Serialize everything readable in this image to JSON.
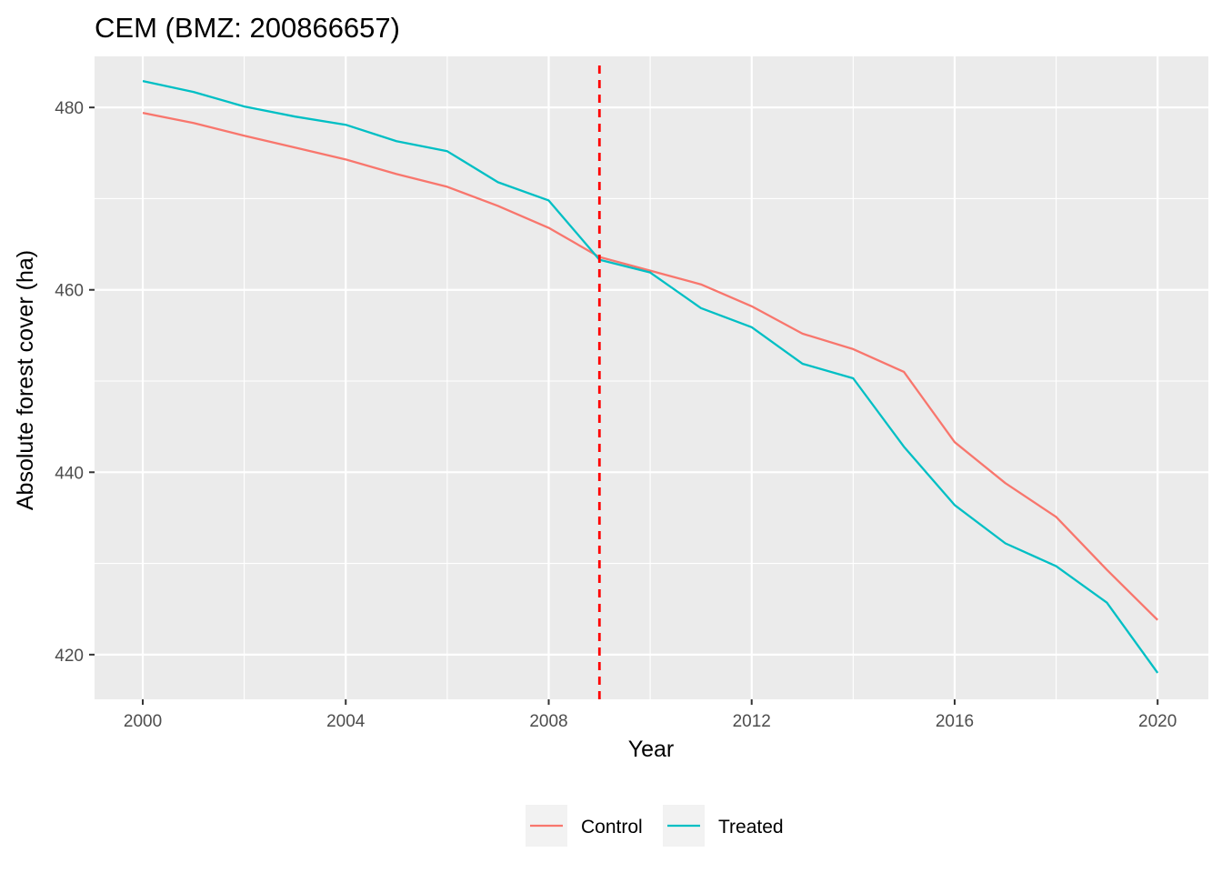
{
  "chart_data": {
    "type": "line",
    "title": "CEM (BMZ: 200866657)",
    "xlabel": "Year",
    "ylabel": "Absolute forest cover (ha)",
    "x": [
      2000,
      2001,
      2002,
      2003,
      2004,
      2005,
      2006,
      2007,
      2008,
      2009,
      2010,
      2011,
      2012,
      2013,
      2014,
      2015,
      2016,
      2017,
      2018,
      2019,
      2020
    ],
    "series": [
      {
        "name": "Control",
        "color": "#F8766D",
        "values": [
          479.4,
          478.3,
          476.9,
          475.6,
          474.3,
          472.7,
          471.3,
          469.2,
          466.8,
          463.6,
          462.1,
          460.6,
          458.2,
          455.2,
          453.5,
          451.0,
          443.3,
          438.8,
          435.1,
          429.3,
          423.8
        ]
      },
      {
        "name": "Treated",
        "color": "#00BFC4",
        "values": [
          482.9,
          481.7,
          480.1,
          479.0,
          478.1,
          476.3,
          475.2,
          471.8,
          469.8,
          463.3,
          461.9,
          458.0,
          455.9,
          451.9,
          450.3,
          442.8,
          436.4,
          432.2,
          429.7,
          425.7,
          418.0
        ]
      }
    ],
    "xlim": [
      1999.05,
      2021.0
    ],
    "ylim": [
      415.1,
      485.6
    ],
    "xticks": [
      2000,
      2004,
      2008,
      2012,
      2016,
      2020
    ],
    "yticks": [
      420,
      440,
      460,
      480
    ],
    "reference_line": {
      "x": 2009,
      "color": "#FF0000",
      "style": "dashed"
    },
    "grid": true,
    "legend_position": "bottom",
    "panel_background": "#EBEBEB",
    "grid_color": "#FFFFFF"
  }
}
